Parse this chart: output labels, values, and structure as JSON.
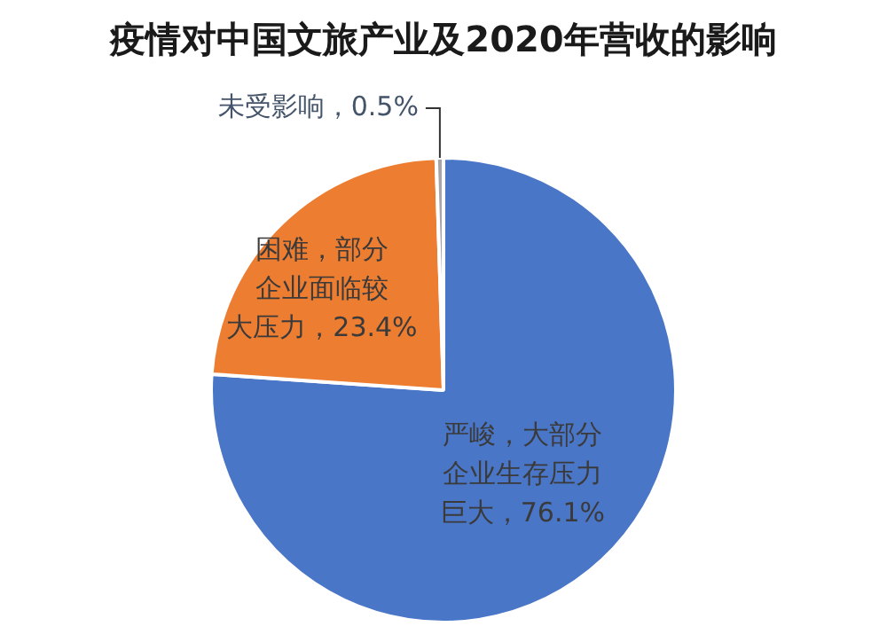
{
  "chart_data": {
    "type": "pie",
    "title": "疫情对中国文旅产业及2020年营收的影响",
    "categories": [
      "严峻，大部分企业生存压力巨大",
      "困难，部分企业面临较大压力",
      "未受影响"
    ],
    "values": [
      76.1,
      23.4,
      0.5
    ],
    "colors": [
      "#4a76c8",
      "#ed7d31",
      "#a5a5a5"
    ],
    "value_labels": [
      "76.1%",
      "23.4%",
      "0.5%"
    ],
    "legend": false
  }
}
